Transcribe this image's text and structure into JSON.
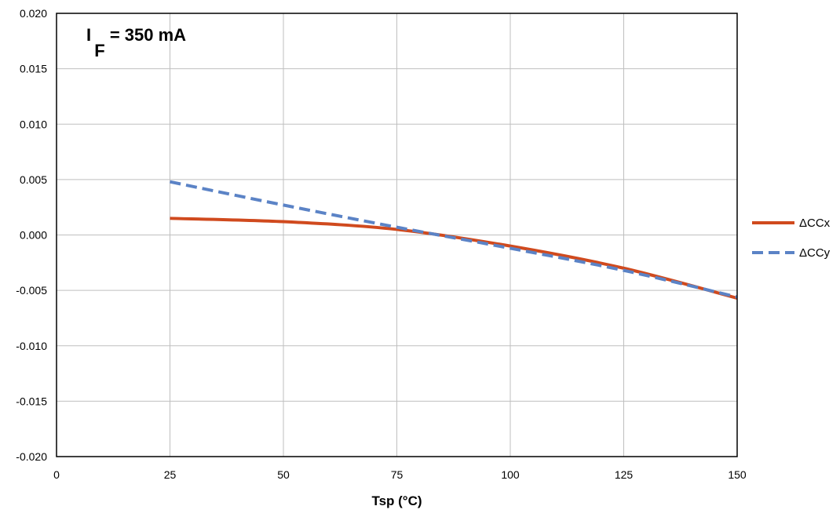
{
  "chart_data": {
    "type": "line",
    "xlabel": "Tsp (°C)",
    "ylabel": "",
    "xlim": [
      0,
      150
    ],
    "ylim": [
      -0.02,
      0.02
    ],
    "x_ticks": [
      "0",
      "25",
      "50",
      "75",
      "100",
      "125",
      "150"
    ],
    "y_ticks": [
      "0.020",
      "0.015",
      "0.010",
      "0.005",
      "0.000",
      "-0.005",
      "-0.010",
      "-0.015",
      "-0.020"
    ],
    "grid": true,
    "legend_position": "right",
    "annotation": {
      "main": "I",
      "subscript": "F",
      "rest": " = 350 mA"
    },
    "series": [
      {
        "name": "ΔCCx",
        "color": "#d04a1e",
        "style": "solid",
        "x": [
          25,
          50,
          75,
          100,
          125,
          150
        ],
        "y": [
          0.0015,
          0.0012,
          0.0005,
          -0.001,
          -0.003,
          -0.0057
        ]
      },
      {
        "name": "ΔCCy",
        "color": "#5b83c6",
        "style": "dashed",
        "x": [
          25,
          50,
          75,
          100,
          125,
          150
        ],
        "y": [
          0.0048,
          0.0027,
          0.0007,
          -0.0012,
          -0.0032,
          -0.0056
        ]
      }
    ]
  }
}
